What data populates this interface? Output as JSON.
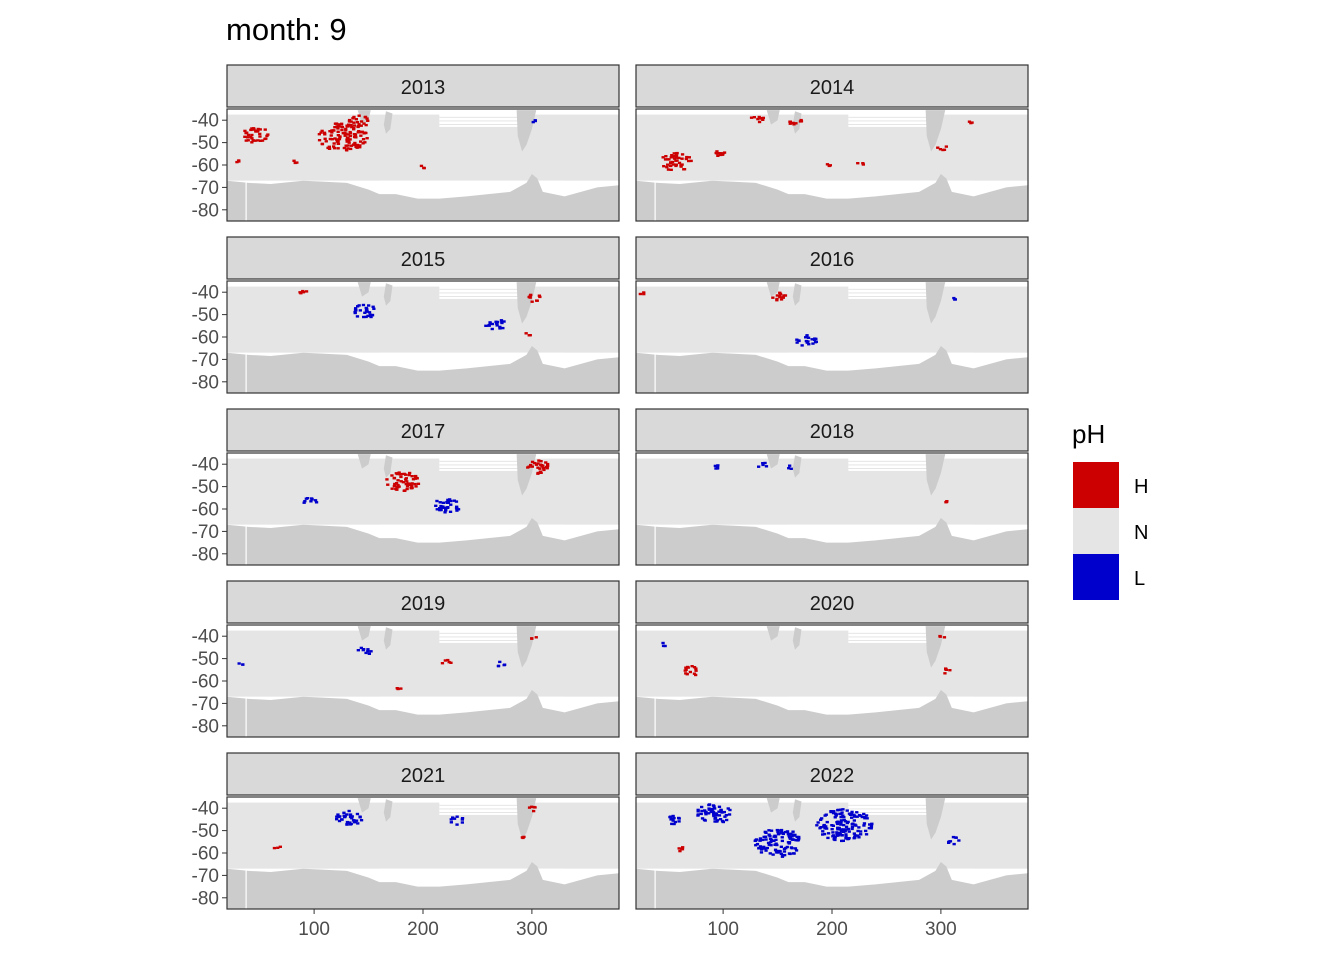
{
  "title": "month: 9",
  "colors": {
    "high": "#cc0000",
    "normal": "#e5e5e5",
    "low": "#0000cc",
    "land": "#cccccc",
    "missing": "#ffffff",
    "strip": "#d9d9d9",
    "border": "#333333"
  },
  "chart_data": {
    "type": "heatmap",
    "title": "month: 9",
    "facet_variable": "year",
    "x_ticks": [
      100,
      200,
      300
    ],
    "y_ticks": [
      -40,
      -50,
      -60,
      -70,
      -80
    ],
    "xlim": [
      20,
      380
    ],
    "ylim": [
      -85,
      -35
    ],
    "legend": {
      "title": "pH",
      "position": "right",
      "entries": [
        {
          "key": "H",
          "label": "H",
          "color": "#cc0000"
        },
        {
          "key": "N",
          "label": "N",
          "color": "#e5e5e5"
        },
        {
          "key": "L",
          "label": "L",
          "color": "#0000cc"
        }
      ]
    },
    "panels": [
      {
        "year": "2013",
        "anomalies": [
          {
            "class": "H",
            "lon": 45,
            "lat": -46,
            "size": 8
          },
          {
            "class": "H",
            "lon": 125,
            "lat": -47,
            "size": 14
          },
          {
            "class": "H",
            "lon": 140,
            "lat": -40,
            "size": 6
          },
          {
            "class": "H",
            "lon": 28,
            "lat": -58,
            "size": 2
          },
          {
            "class": "H",
            "lon": 82,
            "lat": -58,
            "size": 2
          },
          {
            "class": "H",
            "lon": 200,
            "lat": -60,
            "size": 2
          },
          {
            "class": "L",
            "lon": 300,
            "lat": -40,
            "size": 2
          }
        ]
      },
      {
        "year": "2014",
        "anomalies": [
          {
            "class": "H",
            "lon": 55,
            "lat": -58,
            "size": 9
          },
          {
            "class": "H",
            "lon": 95,
            "lat": -55,
            "size": 4
          },
          {
            "class": "H",
            "lon": 130,
            "lat": -39,
            "size": 4
          },
          {
            "class": "H",
            "lon": 165,
            "lat": -40,
            "size": 4
          },
          {
            "class": "H",
            "lon": 195,
            "lat": -60,
            "size": 2
          },
          {
            "class": "H",
            "lon": 225,
            "lat": -59,
            "size": 2
          },
          {
            "class": "H",
            "lon": 300,
            "lat": -52,
            "size": 3
          },
          {
            "class": "H",
            "lon": 325,
            "lat": -41,
            "size": 2
          }
        ]
      },
      {
        "year": "2015",
        "anomalies": [
          {
            "class": "H",
            "lon": 88,
            "lat": -40,
            "size": 3
          },
          {
            "class": "L",
            "lon": 145,
            "lat": -48,
            "size": 7
          },
          {
            "class": "L",
            "lon": 265,
            "lat": -54,
            "size": 6
          },
          {
            "class": "H",
            "lon": 300,
            "lat": -42,
            "size": 4
          },
          {
            "class": "H",
            "lon": 296,
            "lat": -58,
            "size": 2
          }
        ]
      },
      {
        "year": "2016",
        "anomalies": [
          {
            "class": "H",
            "lon": 150,
            "lat": -41,
            "size": 5
          },
          {
            "class": "L",
            "lon": 175,
            "lat": -61,
            "size": 6
          },
          {
            "class": "L",
            "lon": 310,
            "lat": -42,
            "size": 2
          },
          {
            "class": "H",
            "lon": 25,
            "lat": -40,
            "size": 2
          }
        ]
      },
      {
        "year": "2017",
        "anomalies": [
          {
            "class": "H",
            "lon": 180,
            "lat": -47,
            "size": 10
          },
          {
            "class": "L",
            "lon": 220,
            "lat": -58,
            "size": 8
          },
          {
            "class": "L",
            "lon": 95,
            "lat": -56,
            "size": 4
          },
          {
            "class": "H",
            "lon": 305,
            "lat": -41,
            "size": 7
          }
        ]
      },
      {
        "year": "2018",
        "anomalies": [
          {
            "class": "L",
            "lon": 95,
            "lat": -41,
            "size": 3
          },
          {
            "class": "L",
            "lon": 135,
            "lat": -40,
            "size": 3
          },
          {
            "class": "L",
            "lon": 160,
            "lat": -41,
            "size": 2
          },
          {
            "class": "H",
            "lon": 305,
            "lat": -56,
            "size": 2
          }
        ]
      },
      {
        "year": "2019",
        "anomalies": [
          {
            "class": "L",
            "lon": 145,
            "lat": -46,
            "size": 4
          },
          {
            "class": "L",
            "lon": 270,
            "lat": -52,
            "size": 3
          },
          {
            "class": "L",
            "lon": 30,
            "lat": -52,
            "size": 2
          },
          {
            "class": "H",
            "lon": 220,
            "lat": -51,
            "size": 3
          },
          {
            "class": "H",
            "lon": 300,
            "lat": -40,
            "size": 2
          },
          {
            "class": "H",
            "lon": 175,
            "lat": -63,
            "size": 2
          }
        ]
      },
      {
        "year": "2020",
        "anomalies": [
          {
            "class": "H",
            "lon": 70,
            "lat": -55,
            "size": 5
          },
          {
            "class": "H",
            "lon": 305,
            "lat": -55,
            "size": 3
          },
          {
            "class": "L",
            "lon": 45,
            "lat": -43,
            "size": 2
          },
          {
            "class": "H",
            "lon": 300,
            "lat": -40,
            "size": 2
          }
        ]
      },
      {
        "year": "2021",
        "anomalies": [
          {
            "class": "L",
            "lon": 130,
            "lat": -44,
            "size": 8
          },
          {
            "class": "L",
            "lon": 230,
            "lat": -45,
            "size": 4
          },
          {
            "class": "H",
            "lon": 300,
            "lat": -40,
            "size": 3
          },
          {
            "class": "H",
            "lon": 290,
            "lat": -52,
            "size": 2
          },
          {
            "class": "H",
            "lon": 65,
            "lat": -57,
            "size": 2
          }
        ]
      },
      {
        "year": "2022",
        "anomalies": [
          {
            "class": "L",
            "lon": 90,
            "lat": -42,
            "size": 10
          },
          {
            "class": "L",
            "lon": 150,
            "lat": -55,
            "size": 14
          },
          {
            "class": "L",
            "lon": 210,
            "lat": -47,
            "size": 16
          },
          {
            "class": "L",
            "lon": 55,
            "lat": -45,
            "size": 5
          },
          {
            "class": "L",
            "lon": 310,
            "lat": -54,
            "size": 4
          },
          {
            "class": "H",
            "lon": 60,
            "lat": -58,
            "size": 3
          }
        ]
      }
    ]
  }
}
